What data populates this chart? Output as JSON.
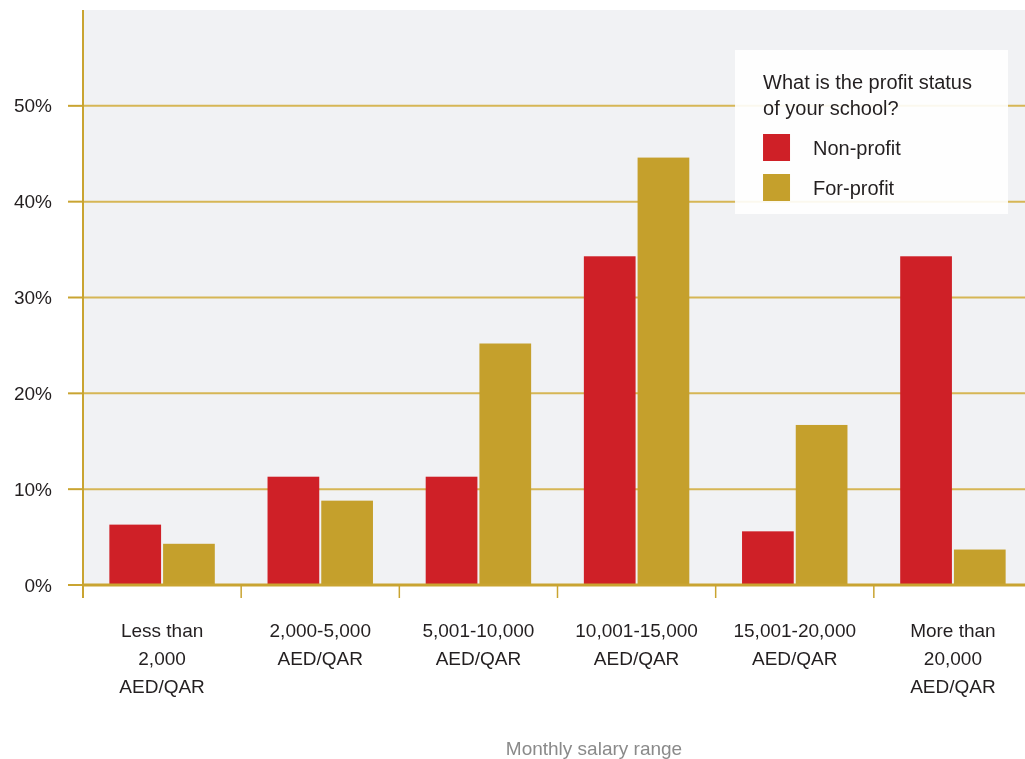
{
  "chart_data": {
    "type": "bar",
    "xlabel": "Monthly salary range",
    "legend_title": "What is the profit status of your school?",
    "categories": [
      "Less than 2,000 AED/QAR",
      "2,000-5,000 AED/QAR",
      "5,001-10,000 AED/QAR",
      "10,001-15,000 AED/QAR",
      "15,001-20,000 AED/QAR",
      "More than 20,000 AED/QAR"
    ],
    "series": [
      {
        "name": "Non-profit",
        "color": "#cf2027",
        "values": [
          6.3,
          11.3,
          11.3,
          34.3,
          5.6,
          34.3
        ]
      },
      {
        "name": "For-profit",
        "color": "#c5a02c",
        "values": [
          4.3,
          8.8,
          25.2,
          44.6,
          16.7,
          3.7
        ]
      }
    ],
    "ylim": [
      0,
      60
    ],
    "yticks": [
      {
        "value": 0,
        "label": "0%"
      },
      {
        "value": 10,
        "label": "10%"
      },
      {
        "value": 20,
        "label": "20%"
      },
      {
        "value": 30,
        "label": "30%"
      },
      {
        "value": 40,
        "label": "40%"
      },
      {
        "value": 50,
        "label": "50%"
      }
    ],
    "grid": "y",
    "legend": "top right"
  }
}
